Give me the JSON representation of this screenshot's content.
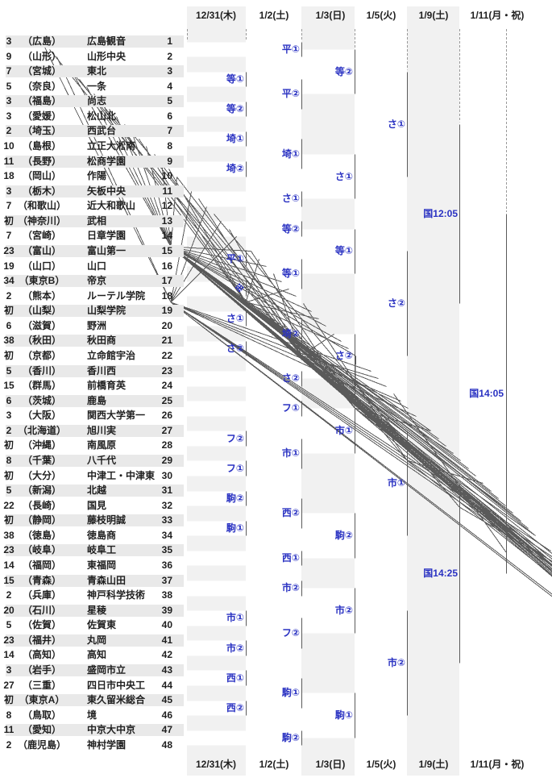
{
  "dates": [
    "12/31(木)",
    "1/2(土)",
    "1/3(日)",
    "1/5(火)",
    "1/9(土)",
    "1/11(月・祝)"
  ],
  "teams": [
    {
      "apps": "3",
      "pref": "（広島）",
      "name": "広島観音",
      "no": "1"
    },
    {
      "apps": "9",
      "pref": "（山形）",
      "name": "山形中央",
      "no": "2"
    },
    {
      "apps": "7",
      "pref": "（宮城）",
      "name": "東北",
      "no": "3"
    },
    {
      "apps": "5",
      "pref": "（奈良）",
      "name": "一条",
      "no": "4"
    },
    {
      "apps": "3",
      "pref": "（福島）",
      "name": "尚志",
      "no": "5"
    },
    {
      "apps": "3",
      "pref": "（愛媛）",
      "name": "松山北",
      "no": "6"
    },
    {
      "apps": "2",
      "pref": "（埼玉）",
      "name": "西武台",
      "no": "7"
    },
    {
      "apps": "10",
      "pref": "（島根）",
      "name": "立正大淞南",
      "no": "8"
    },
    {
      "apps": "11",
      "pref": "（長野）",
      "name": "松商学園",
      "no": "9"
    },
    {
      "apps": "18",
      "pref": "（岡山）",
      "name": "作陽",
      "no": "10"
    },
    {
      "apps": "3",
      "pref": "（栃木）",
      "name": "矢板中央",
      "no": "11"
    },
    {
      "apps": "7",
      "pref": "（和歌山）",
      "name": "近大和歌山",
      "no": "12"
    },
    {
      "apps": "初",
      "pref": "（神奈川）",
      "name": "武相",
      "no": "13"
    },
    {
      "apps": "7",
      "pref": "（宮崎）",
      "name": "日章学園",
      "no": "14"
    },
    {
      "apps": "23",
      "pref": "（富山）",
      "name": "富山第一",
      "no": "15"
    },
    {
      "apps": "19",
      "pref": "（山口）",
      "name": "山口",
      "no": "16"
    },
    {
      "apps": "34",
      "pref": "（東京B）",
      "name": "帝京",
      "no": "17"
    },
    {
      "apps": "2",
      "pref": "（熊本）",
      "name": "ルーテル学院",
      "no": "18"
    },
    {
      "apps": "初",
      "pref": "（山梨）",
      "name": "山梨学院",
      "no": "19"
    },
    {
      "apps": "6",
      "pref": "（滋賀）",
      "name": "野洲",
      "no": "20"
    },
    {
      "apps": "38",
      "pref": "（秋田）",
      "name": "秋田商",
      "no": "21"
    },
    {
      "apps": "初",
      "pref": "（京都）",
      "name": "立命館宇治",
      "no": "22"
    },
    {
      "apps": "5",
      "pref": "（香川）",
      "name": "香川西",
      "no": "23"
    },
    {
      "apps": "15",
      "pref": "（群馬）",
      "name": "前橋育英",
      "no": "24"
    },
    {
      "apps": "6",
      "pref": "（茨城）",
      "name": "鹿島",
      "no": "25"
    },
    {
      "apps": "3",
      "pref": "（大阪）",
      "name": "関西大学第一",
      "no": "26"
    },
    {
      "apps": "2",
      "pref": "（北海道）",
      "name": "旭川実",
      "no": "27"
    },
    {
      "apps": "初",
      "pref": "（沖縄）",
      "name": "南風原",
      "no": "28"
    },
    {
      "apps": "8",
      "pref": "（千葉）",
      "name": "八千代",
      "no": "29"
    },
    {
      "apps": "初",
      "pref": "（大分）",
      "name": "中津工・中津東",
      "no": "30"
    },
    {
      "apps": "5",
      "pref": "（新潟）",
      "name": "北越",
      "no": "31"
    },
    {
      "apps": "22",
      "pref": "（長崎）",
      "name": "国見",
      "no": "32"
    },
    {
      "apps": "初",
      "pref": "（静岡）",
      "name": "藤枝明誠",
      "no": "33"
    },
    {
      "apps": "38",
      "pref": "（徳島）",
      "name": "徳島商",
      "no": "34"
    },
    {
      "apps": "23",
      "pref": "（岐阜）",
      "name": "岐阜工",
      "no": "35"
    },
    {
      "apps": "14",
      "pref": "（福岡）",
      "name": "東福岡",
      "no": "36"
    },
    {
      "apps": "15",
      "pref": "（青森）",
      "name": "青森山田",
      "no": "37"
    },
    {
      "apps": "2",
      "pref": "（兵庫）",
      "name": "神戸科学技術",
      "no": "38"
    },
    {
      "apps": "20",
      "pref": "（石川）",
      "name": "星稜",
      "no": "39"
    },
    {
      "apps": "5",
      "pref": "（佐賀）",
      "name": "佐賀東",
      "no": "40"
    },
    {
      "apps": "23",
      "pref": "（福井）",
      "name": "丸岡",
      "no": "41"
    },
    {
      "apps": "14",
      "pref": "（高知）",
      "name": "高知",
      "no": "42"
    },
    {
      "apps": "3",
      "pref": "（岩手）",
      "name": "盛岡市立",
      "no": "43"
    },
    {
      "apps": "27",
      "pref": "（三重）",
      "name": "四日市中央工",
      "no": "44"
    },
    {
      "apps": "初",
      "pref": "（東京A）",
      "name": "東久留米総合",
      "no": "45"
    },
    {
      "apps": "8",
      "pref": "（鳥取）",
      "name": "境",
      "no": "46"
    },
    {
      "apps": "11",
      "pref": "（愛知）",
      "name": "中京大中京",
      "no": "47"
    },
    {
      "apps": "2",
      "pref": "（鹿児島）",
      "name": "神村学園",
      "no": "48"
    }
  ],
  "bracket": {
    "round1": [
      {
        "slots": [
          3,
          4
        ],
        "venue": "等①"
      },
      {
        "slots": [
          5,
          6
        ],
        "venue": "等②"
      },
      {
        "slots": [
          7,
          8
        ],
        "venue": "埼①"
      },
      {
        "slots": [
          9,
          10
        ],
        "venue": "埼②"
      },
      {
        "slots": [
          15,
          16
        ],
        "venue": "平①"
      },
      {
        "slots": [
          17,
          18
        ],
        "venue": "※"
      },
      {
        "slots": [
          19,
          20
        ],
        "venue": "さ①"
      },
      {
        "slots": [
          21,
          22
        ],
        "venue": "さ②"
      },
      {
        "slots": [
          27,
          28
        ],
        "venue": "フ②"
      },
      {
        "slots": [
          29,
          30
        ],
        "venue": "フ①"
      },
      {
        "slots": [
          31,
          32
        ],
        "venue": "駒②"
      },
      {
        "slots": [
          33,
          34
        ],
        "venue": "駒①"
      },
      {
        "slots": [
          39,
          40
        ],
        "venue": "市①"
      },
      {
        "slots": [
          41,
          42
        ],
        "venue": "市②"
      },
      {
        "slots": [
          43,
          44
        ],
        "venue": "西①"
      },
      {
        "slots": [
          45,
          46
        ],
        "venue": "西②"
      }
    ],
    "round2": [
      {
        "teams": [
          1,
          2
        ],
        "venue": "平①"
      },
      {
        "winners": [
          0,
          1
        ],
        "venue": "平②"
      },
      {
        "winners": [
          2,
          3
        ],
        "venue": "埼①"
      },
      {
        "teams": [
          11,
          12
        ],
        "venue": "さ①"
      },
      {
        "teams": [
          13,
          14
        ],
        "venue": "等②"
      },
      {
        "winners": [
          4,
          5
        ],
        "venue": "等①"
      },
      {
        "winners": [
          6,
          7
        ],
        "venue": "埼②"
      },
      {
        "teams": [
          23,
          24
        ],
        "venue": "さ②"
      },
      {
        "teams": [
          25,
          26
        ],
        "venue": "フ①"
      },
      {
        "winners": [
          8,
          9
        ],
        "venue": "市①"
      },
      {
        "winners": [
          10,
          11
        ],
        "venue": "西②"
      },
      {
        "teams": [
          35,
          36
        ],
        "venue": "西①"
      },
      {
        "teams": [
          37,
          38
        ],
        "venue": "市②"
      },
      {
        "winners": [
          12,
          13
        ],
        "venue": "フ②"
      },
      {
        "winners": [
          14,
          15
        ],
        "venue": "駒①"
      },
      {
        "teams": [
          47,
          48
        ],
        "venue": "駒②"
      }
    ],
    "round3": [
      {
        "venue": "等②"
      },
      {
        "venue": "さ①"
      },
      {
        "venue": "等①"
      },
      {
        "venue": "さ②"
      },
      {
        "venue": "市①"
      },
      {
        "venue": "駒②"
      },
      {
        "venue": "市②"
      },
      {
        "venue": "駒①"
      }
    ],
    "quarterfinals": [
      {
        "venue": "さ①"
      },
      {
        "venue": "さ②"
      },
      {
        "venue": "市①"
      },
      {
        "venue": "市②"
      }
    ],
    "semifinals": [
      {
        "venue": "国12:05"
      },
      {
        "venue": "国14:25"
      }
    ],
    "final": {
      "venue": "国14:05"
    }
  },
  "colors": {
    "venue_blue": "#2a32c2",
    "line_gray": "#5a5a5a",
    "column_band": "#f1f1f1",
    "row_stripe": "#e9e9e9",
    "dash_gray": "#999999",
    "text": "#1f1f1f"
  }
}
